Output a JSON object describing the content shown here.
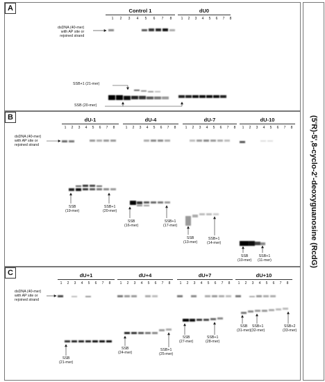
{
  "panels": {
    "A": {
      "label": "A",
      "groups": [
        "Control 1",
        "dU0"
      ],
      "lanes": [
        "1",
        "2",
        "3",
        "4",
        "5",
        "6",
        "7",
        "8"
      ]
    },
    "B": {
      "label": "B",
      "groups": [
        "dU-1",
        "dU-4",
        "dU-7",
        "dU-10"
      ],
      "lanes": [
        "1",
        "2",
        "3",
        "4",
        "5",
        "6",
        "7",
        "8"
      ]
    },
    "C": {
      "label": "C",
      "groups": [
        "dU+1",
        "dU+4",
        "dU+7",
        "dU+10"
      ],
      "lanes": [
        "1",
        "2",
        "3",
        "4",
        "5",
        "6",
        "7",
        "8"
      ]
    }
  },
  "dsdna_label": [
    "dsDNA (40-mer)",
    "with AP site or",
    "rejoined strand"
  ],
  "annotations": {
    "A": {
      "ssb1": "SSB+1 (21-mer)",
      "ssb": "SSB (20-mer)"
    },
    "B": {
      "g1_ssb": [
        "SSB",
        "(19-mer)"
      ],
      "g1_ssb1": [
        "SSB+1",
        "(20-mer)"
      ],
      "g2_ssb": [
        "SSB",
        "(16-mer)"
      ],
      "g2_ssb1": [
        "SSB+1",
        "(17-mer)"
      ],
      "g3_ssb": [
        "SSB",
        "(13-mer)"
      ],
      "g3_ssb1": [
        "SSB+1",
        "(14-mer)"
      ],
      "g4_ssb": [
        "SSB",
        "(10-mer)"
      ],
      "g4_ssb1": [
        "SSB+1",
        "(11-mer)"
      ]
    },
    "C": {
      "g1_ssb": [
        "SSB",
        "(21-mer)"
      ],
      "g2_ssb": [
        "SSB",
        "(24-mer)"
      ],
      "g2_ssb1": [
        "SSB+1",
        "(25-mer)"
      ],
      "g3_ssb": [
        "SSB",
        "(27-mer)"
      ],
      "g3_ssb1": [
        "SSB+1",
        "(28-mer)"
      ],
      "g4_ssb": [
        "SSB",
        "(31-mer)"
      ],
      "g4_ssb1": [
        "SSB+1",
        "(32-mer)"
      ],
      "g4_ssb2": [
        "SSB+2",
        "(33-mer)"
      ]
    }
  },
  "side_title": "(5'R)-5',8-cyclo-2'-deoxyguanosine (RcdG)"
}
